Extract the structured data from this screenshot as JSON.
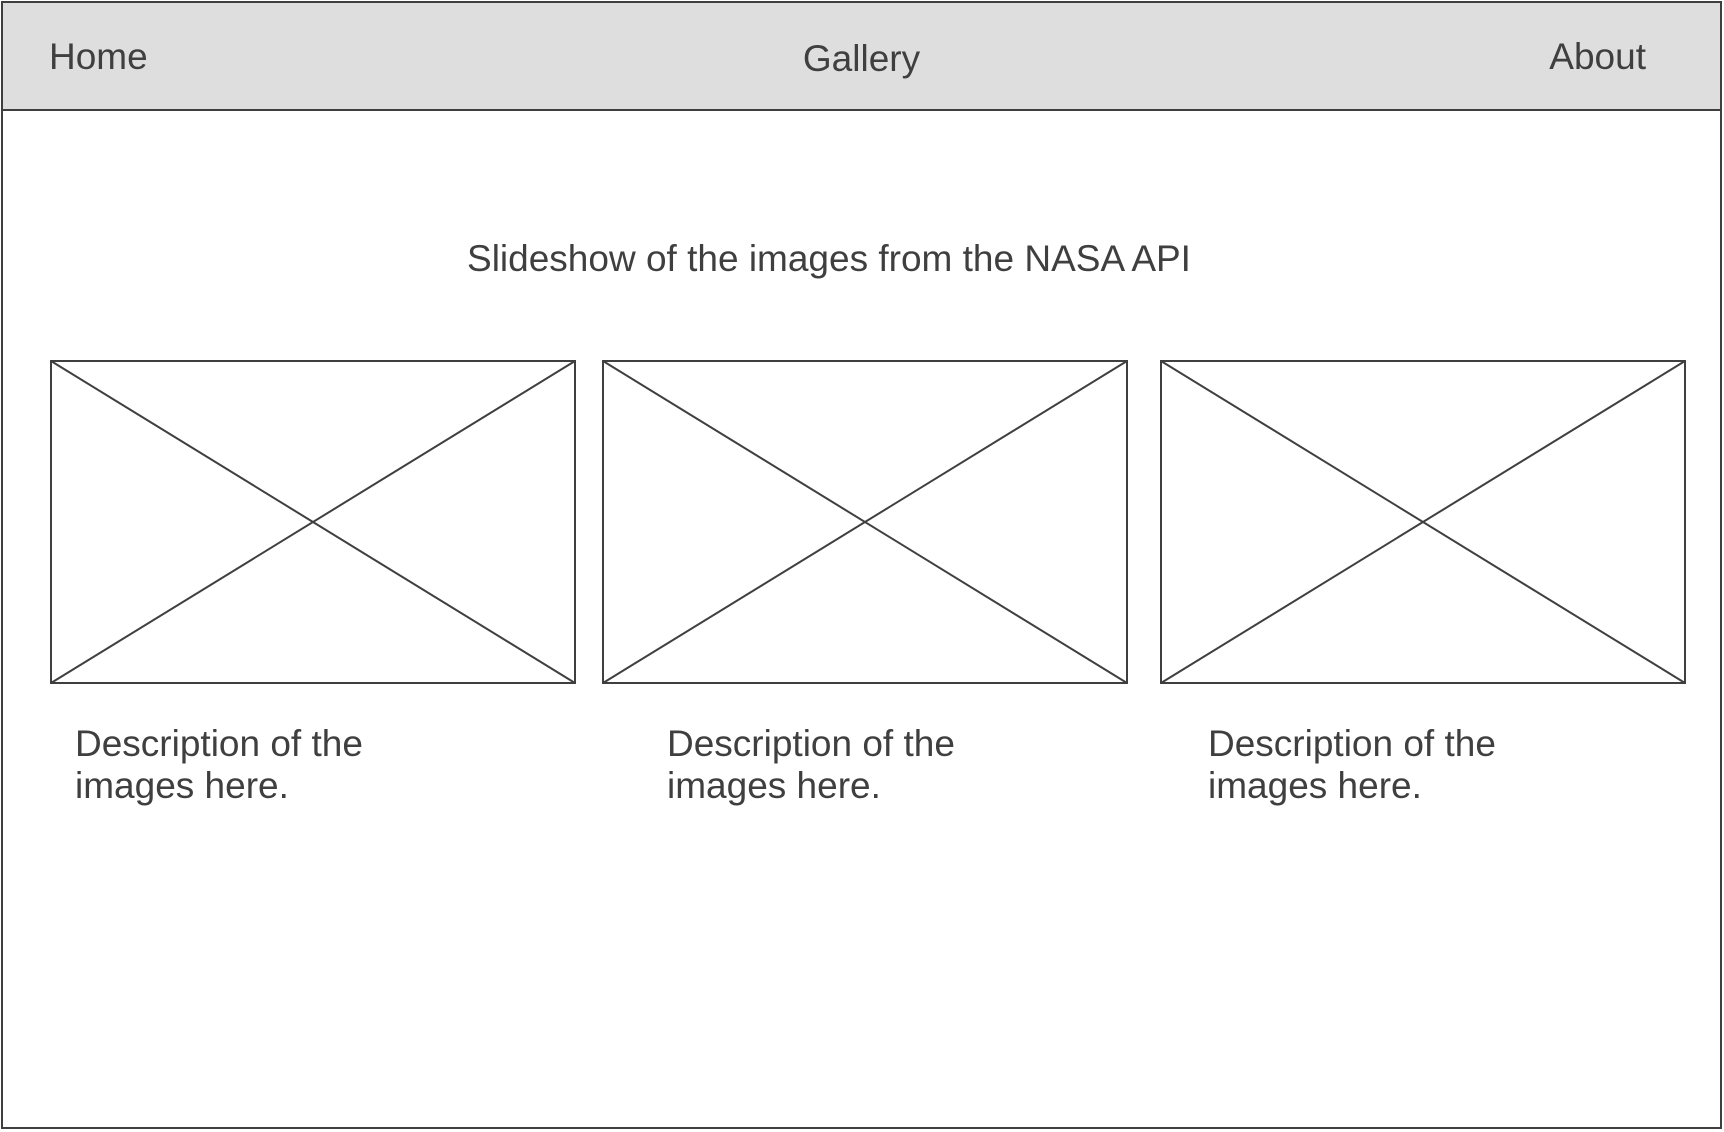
{
  "nav": {
    "home": "Home",
    "gallery": "Gallery",
    "about": "About"
  },
  "main": {
    "headline": "Slideshow of the images from the NASA API",
    "cards": [
      {
        "description": "Description of the images here."
      },
      {
        "description": "Description of the images here."
      },
      {
        "description": "Description of the images here."
      }
    ]
  },
  "colors": {
    "navbar_bg": "#dedede",
    "stroke": "#3f3f3f",
    "page_bg": "#ffffff"
  },
  "icons": {
    "image_placeholder": "image-placeholder-icon"
  }
}
